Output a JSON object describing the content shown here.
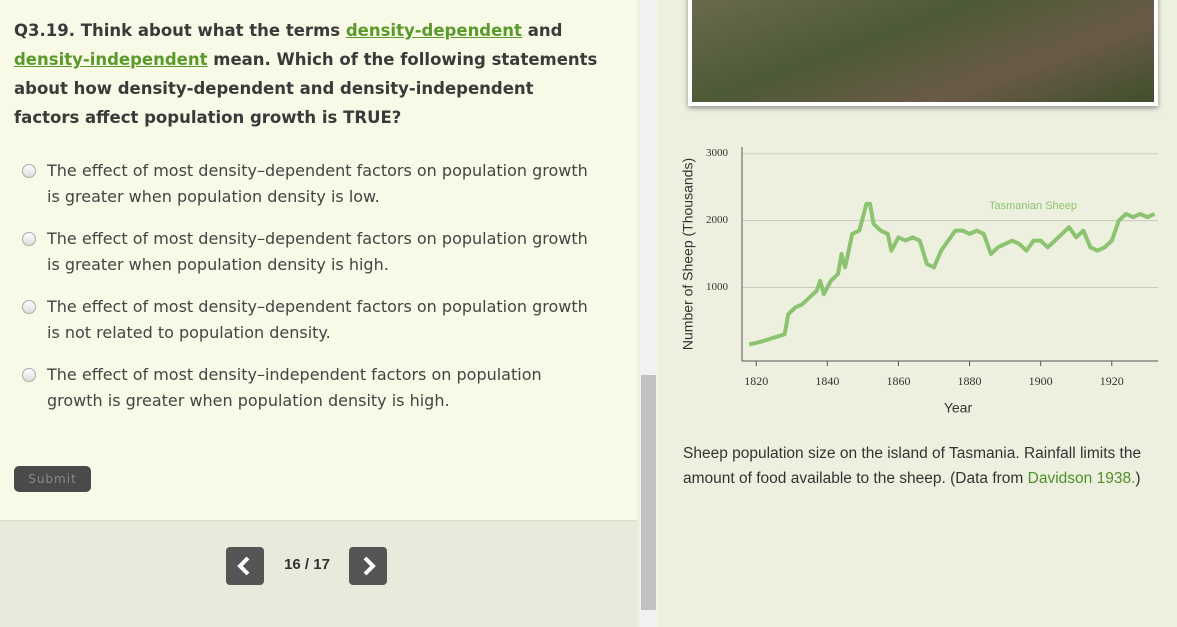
{
  "question": {
    "segments": [
      "Q3.19. Think about what the terms ",
      "density-dependent",
      " and ",
      "density-independent",
      " mean. Which of the following statements about how density-dependent and density-independent factors affect population growth is TRUE?"
    ]
  },
  "options": [
    "The effect of most density–dependent factors on population growth is greater when population density is low.",
    "The effect of most density–dependent factors on population growth is greater when population density is high.",
    "The effect of most density–dependent factors on population growth is not related to population density.",
    "The effect of most density–independent factors on population growth is greater when population density is high."
  ],
  "submit": "Submit",
  "nav": {
    "position": "16 / 17"
  },
  "chart_data": {
    "type": "line",
    "ylabel": "Number of Sheep (Thousands)",
    "xlabel": "Year",
    "xlim": [
      1816,
      1933
    ],
    "ylim": [
      -100,
      3100
    ],
    "xticks": [
      1820,
      1840,
      1860,
      1880,
      1900,
      1920
    ],
    "yticks": [
      1000,
      2000,
      3000
    ],
    "grid": true,
    "x": [
      1818,
      1820,
      1822,
      1828,
      1829,
      1831,
      1833,
      1835,
      1837,
      1838,
      1839,
      1841,
      1843,
      1844,
      1845,
      1847,
      1849,
      1851,
      1852,
      1853,
      1855,
      1857,
      1858,
      1860,
      1862,
      1864,
      1866,
      1868,
      1870,
      1872,
      1874,
      1876,
      1878,
      1880,
      1882,
      1884,
      1886,
      1888,
      1890,
      1892,
      1894,
      1896,
      1898,
      1900,
      1902,
      1904,
      1906,
      1908,
      1910,
      1912,
      1914,
      1916,
      1918,
      1920,
      1922,
      1924,
      1926,
      1928,
      1930,
      1932
    ],
    "series": [
      {
        "name": "Tasmanian Sheep",
        "color": "#8cc370",
        "values": [
          150,
          170,
          200,
          300,
          600,
          700,
          750,
          850,
          950,
          1100,
          900,
          1100,
          1200,
          1500,
          1300,
          1800,
          1850,
          2250,
          2250,
          1950,
          1850,
          1800,
          1550,
          1750,
          1700,
          1750,
          1700,
          1350,
          1300,
          1550,
          1700,
          1850,
          1850,
          1800,
          1850,
          1800,
          1500,
          1600,
          1650,
          1700,
          1650,
          1550,
          1700,
          1700,
          1600,
          1700,
          1800,
          1900,
          1750,
          1850,
          1600,
          1550,
          1600,
          1700,
          2000,
          2100,
          2050,
          2100,
          2050,
          2100
        ]
      }
    ]
  },
  "caption": {
    "segments": [
      "Sheep population size on the island of Tasmania. Rainfall limits the amount of food available to the sheep. (Data from ",
      "Davidson 1938.",
      ")"
    ]
  }
}
